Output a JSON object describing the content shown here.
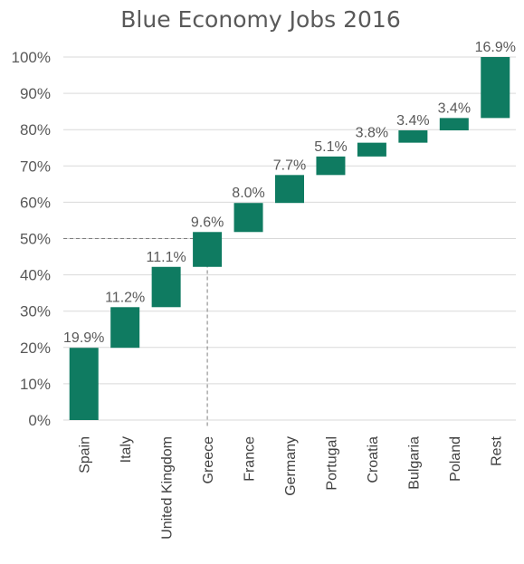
{
  "chart_data": {
    "type": "bar",
    "subtype": "waterfall",
    "title": "Blue Economy Jobs 2016",
    "xlabel": "",
    "ylabel": "",
    "ylim": [
      0,
      100
    ],
    "yticks": [
      "0%",
      "10%",
      "20%",
      "30%",
      "40%",
      "50%",
      "60%",
      "70%",
      "80%",
      "90%",
      "100%"
    ],
    "categories": [
      "Spain",
      "Italy",
      "United Kingdom",
      "Greece",
      "France",
      "Germany",
      "Portugal",
      "Croatia",
      "Bulgaria",
      "Poland",
      "Rest"
    ],
    "values": [
      19.9,
      11.2,
      11.1,
      9.6,
      8.0,
      7.7,
      5.1,
      3.8,
      3.4,
      3.4,
      16.9
    ],
    "value_labels": [
      "19.9%",
      "11.2%",
      "11.1%",
      "9.6%",
      "8.0%",
      "7.7%",
      "5.1%",
      "3.8%",
      "3.4%",
      "3.4%",
      "16.9%"
    ],
    "bar_color": "#0F7B61",
    "grid": true,
    "reference_line": {
      "value": 50,
      "category": "Greece"
    }
  }
}
